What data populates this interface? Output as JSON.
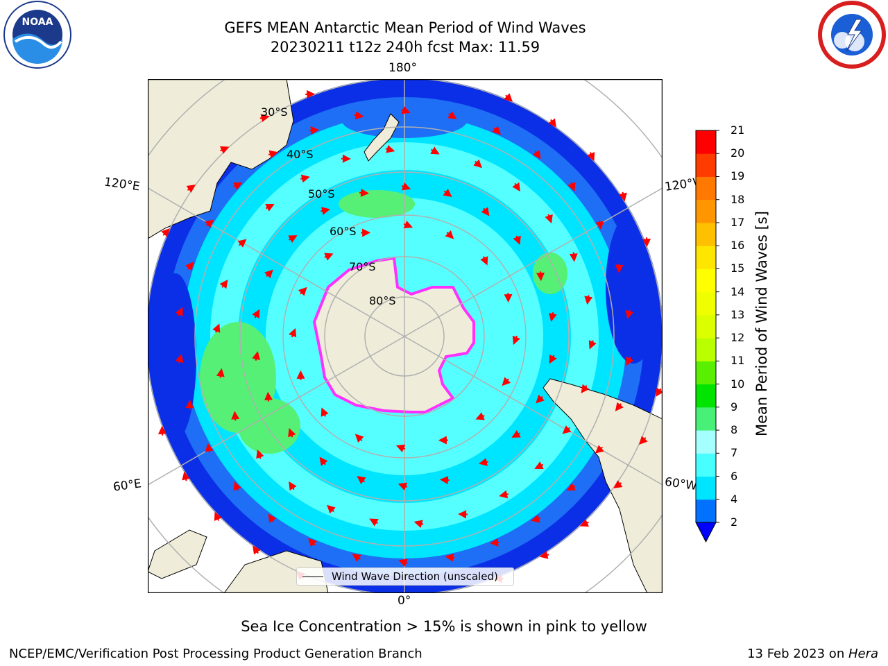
{
  "title": {
    "line1": "GEFS MEAN Antarctic Mean Period of Wind Waves",
    "line2": "20230211 t12z 240h fcst   Max: 11.59"
  },
  "logos": {
    "left": "NOAA",
    "right": "NATIONAL WEATHER SERVICE"
  },
  "map": {
    "projection": "south-polar-stereographic",
    "longitude_labels": {
      "top": "180°",
      "bottom": "0°",
      "upper_left": "120°E",
      "upper_right": "120°W",
      "lower_left": "60°E",
      "lower_right": "60°W"
    },
    "latitude_labels": [
      "30°S",
      "40°S",
      "50°S",
      "60°S",
      "70°S",
      "80°S"
    ],
    "legend": "Wind Wave Direction (unscaled)",
    "colors": {
      "land": "#efedd9",
      "ocean_deep_blue": "#0b2fe6",
      "ocean_blue": "#1e6ff5",
      "ocean_cyan": "#00e5ff",
      "ocean_light_cyan": "#55ffff",
      "green": "#55f075",
      "sea_ice": "#ff30ff",
      "arrows": "#ff0000"
    }
  },
  "colorbar": {
    "label": "Mean Period of Wind Waves [s]",
    "ticks": [
      "2",
      "4",
      "6",
      "7",
      "8",
      "9",
      "10",
      "11",
      "12",
      "13",
      "14",
      "15",
      "16",
      "17",
      "18",
      "19",
      "20",
      "21"
    ],
    "colors": [
      "#0072ff",
      "#00e5ff",
      "#48ffff",
      "#a5ffff",
      "#48f078",
      "#00e400",
      "#5aef00",
      "#b9ff00",
      "#dcff00",
      "#f0ff00",
      "#ffff00",
      "#ffe600",
      "#ffc000",
      "#ff9600",
      "#ff7800",
      "#ff3c00",
      "#ff0000"
    ],
    "under_color": "#0000ff"
  },
  "note": "Sea Ice Concentration > 15% is shown in pink to yellow",
  "footer": {
    "left": "NCEP/EMC/Verification Post Processing Product Generation Branch",
    "right_prefix": "13 Feb 2023 on ",
    "right_machine": "Hera"
  }
}
